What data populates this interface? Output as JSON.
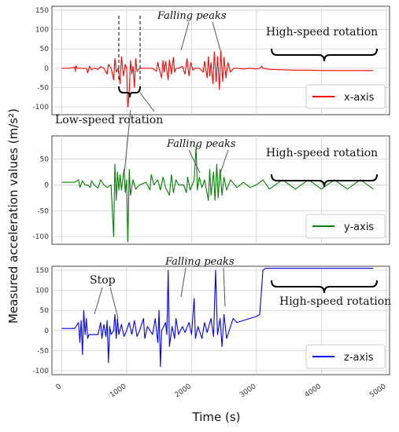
{
  "chart_data": [
    {
      "type": "line",
      "panel": "x-axis",
      "series": [
        {
          "name": "x-axis",
          "color": "#ff0000",
          "points": [
            [
              0,
              0
            ],
            [
              120,
              0
            ],
            [
              200,
              3
            ],
            [
              210,
              -8
            ],
            [
              220,
              6
            ],
            [
              240,
              0
            ],
            [
              380,
              0
            ],
            [
              400,
              -12
            ],
            [
              430,
              5
            ],
            [
              460,
              -4
            ],
            [
              500,
              0
            ],
            [
              560,
              -3
            ],
            [
              600,
              4
            ],
            [
              650,
              0
            ],
            [
              700,
              -15
            ],
            [
              720,
              10
            ],
            [
              760,
              0
            ],
            [
              800,
              -30
            ],
            [
              820,
              25
            ],
            [
              840,
              -10
            ],
            [
              870,
              0
            ],
            [
              900,
              -40
            ],
            [
              920,
              30
            ],
            [
              950,
              -20
            ],
            [
              980,
              10
            ],
            [
              1000,
              0
            ],
            [
              1020,
              -100
            ],
            [
              1040,
              -60
            ],
            [
              1060,
              20
            ],
            [
              1080,
              -15
            ],
            [
              1100,
              5
            ],
            [
              1120,
              -50
            ],
            [
              1140,
              25
            ],
            [
              1160,
              -8
            ],
            [
              1200,
              0
            ],
            [
              1300,
              0
            ],
            [
              1400,
              0
            ],
            [
              1460,
              -8
            ],
            [
              1480,
              15
            ],
            [
              1500,
              0
            ],
            [
              1540,
              -25
            ],
            [
              1560,
              20
            ],
            [
              1580,
              -10
            ],
            [
              1600,
              18
            ],
            [
              1640,
              -30
            ],
            [
              1660,
              22
            ],
            [
              1690,
              -15
            ],
            [
              1720,
              28
            ],
            [
              1740,
              -10
            ],
            [
              1760,
              0
            ],
            [
              1800,
              0
            ],
            [
              1860,
              5
            ],
            [
              1900,
              -15
            ],
            [
              1930,
              25
            ],
            [
              1960,
              -20
            ],
            [
              1990,
              15
            ],
            [
              2020,
              -5
            ],
            [
              2050,
              0
            ],
            [
              2120,
              0
            ],
            [
              2180,
              -10
            ],
            [
              2200,
              18
            ],
            [
              2240,
              -25
            ],
            [
              2260,
              30
            ],
            [
              2280,
              -20
            ],
            [
              2300,
              15
            ],
            [
              2330,
              -40
            ],
            [
              2350,
              42
            ],
            [
              2380,
              -35
            ],
            [
              2400,
              30
            ],
            [
              2430,
              -55
            ],
            [
              2450,
              45
            ],
            [
              2480,
              -35
            ],
            [
              2500,
              28
            ],
            [
              2530,
              -25
            ],
            [
              2560,
              15
            ],
            [
              2600,
              -10
            ],
            [
              2650,
              0
            ],
            [
              2700,
              0
            ],
            [
              2800,
              -2
            ],
            [
              2900,
              0
            ],
            [
              3000,
              -2
            ],
            [
              3050,
              0
            ],
            [
              3080,
              5
            ],
            [
              3100,
              0
            ],
            [
              3200,
              -3
            ],
            [
              3400,
              -4
            ],
            [
              3600,
              -5
            ],
            [
              3800,
              -5
            ],
            [
              4000,
              -6
            ],
            [
              4200,
              -6
            ],
            [
              4400,
              -6
            ],
            [
              4600,
              -6
            ],
            [
              4800,
              -6
            ]
          ]
        }
      ],
      "ylim": [
        -120,
        160
      ],
      "yticks": [
        -100,
        -50,
        0,
        50,
        100,
        150
      ],
      "xlim": [
        -150,
        5050
      ],
      "xticks": [
        0,
        1000,
        2000,
        3000,
        4000,
        5000
      ],
      "legend": "bottom-right",
      "grid": true,
      "annotations": {
        "falling_peaks": "Falling peaks",
        "high_speed": "High-speed rotation",
        "low_speed": "Low-speed rotation"
      }
    },
    {
      "type": "line",
      "panel": "y-axis",
      "series": [
        {
          "name": "y-axis",
          "color": "#008000",
          "points": [
            [
              0,
              5
            ],
            [
              200,
              5
            ],
            [
              260,
              10
            ],
            [
              280,
              -5
            ],
            [
              320,
              8
            ],
            [
              360,
              0
            ],
            [
              400,
              0
            ],
            [
              440,
              -5
            ],
            [
              460,
              8
            ],
            [
              500,
              0
            ],
            [
              560,
              -6
            ],
            [
              600,
              10
            ],
            [
              650,
              0
            ],
            [
              700,
              -5
            ],
            [
              760,
              0
            ],
            [
              800,
              -100
            ],
            [
              820,
              40
            ],
            [
              840,
              -30
            ],
            [
              860,
              25
            ],
            [
              880,
              -10
            ],
            [
              900,
              20
            ],
            [
              920,
              -10
            ],
            [
              960,
              30
            ],
            [
              980,
              -15
            ],
            [
              1000,
              10
            ],
            [
              1020,
              -110
            ],
            [
              1040,
              30
            ],
            [
              1060,
              -20
            ],
            [
              1100,
              10
            ],
            [
              1140,
              -8
            ],
            [
              1200,
              0
            ],
            [
              1300,
              5
            ],
            [
              1360,
              -10
            ],
            [
              1380,
              20
            ],
            [
              1420,
              0
            ],
            [
              1480,
              10
            ],
            [
              1520,
              -10
            ],
            [
              1560,
              15
            ],
            [
              1600,
              -5
            ],
            [
              1660,
              -20
            ],
            [
              1690,
              20
            ],
            [
              1720,
              -15
            ],
            [
              1760,
              10
            ],
            [
              1800,
              0
            ],
            [
              1880,
              0
            ],
            [
              1920,
              -15
            ],
            [
              1940,
              15
            ],
            [
              1980,
              -10
            ],
            [
              2040,
              10
            ],
            [
              2070,
              75
            ],
            [
              2090,
              -10
            ],
            [
              2120,
              15
            ],
            [
              2160,
              -5
            ],
            [
              2200,
              10
            ],
            [
              2260,
              -30
            ],
            [
              2280,
              30
            ],
            [
              2300,
              -20
            ],
            [
              2340,
              25
            ],
            [
              2360,
              -30
            ],
            [
              2390,
              40
            ],
            [
              2410,
              -25
            ],
            [
              2440,
              30
            ],
            [
              2470,
              -20
            ],
            [
              2500,
              15
            ],
            [
              2540,
              -10
            ],
            [
              2600,
              10
            ],
            [
              2700,
              -5
            ],
            [
              2800,
              5
            ],
            [
              2900,
              -5
            ],
            [
              3000,
              0
            ],
            [
              3100,
              10
            ],
            [
              3200,
              -8
            ],
            [
              3400,
              10
            ],
            [
              3600,
              -8
            ],
            [
              3800,
              10
            ],
            [
              4000,
              -8
            ],
            [
              4200,
              10
            ],
            [
              4400,
              -8
            ],
            [
              4600,
              10
            ],
            [
              4800,
              -8
            ]
          ]
        }
      ],
      "ylim": [
        -115,
        95
      ],
      "yticks": [
        -100,
        -50,
        0,
        50
      ],
      "xlim": [
        -150,
        5050
      ],
      "xticks": [
        0,
        1000,
        2000,
        3000,
        4000,
        5000
      ],
      "legend": "bottom-right",
      "grid": true,
      "annotations": {
        "falling_peaks": "Falling peaks",
        "high_speed": "High-speed rotation"
      }
    },
    {
      "type": "line",
      "panel": "z-axis",
      "series": [
        {
          "name": "z-axis",
          "color": "#0000ff",
          "points": [
            [
              0,
              5
            ],
            [
              200,
              5
            ],
            [
              260,
              20
            ],
            [
              280,
              -30
            ],
            [
              300,
              25
            ],
            [
              320,
              -60
            ],
            [
              340,
              50
            ],
            [
              360,
              -10
            ],
            [
              380,
              30
            ],
            [
              400,
              -20
            ],
            [
              420,
              -10
            ],
            [
              500,
              -10
            ],
            [
              560,
              -10
            ],
            [
              600,
              20
            ],
            [
              620,
              -20
            ],
            [
              650,
              15
            ],
            [
              680,
              -15
            ],
            [
              700,
              25
            ],
            [
              720,
              -80
            ],
            [
              740,
              10
            ],
            [
              760,
              -10
            ],
            [
              800,
              0
            ],
            [
              820,
              40
            ],
            [
              840,
              -20
            ],
            [
              860,
              30
            ],
            [
              880,
              -10
            ],
            [
              920,
              15
            ],
            [
              960,
              -15
            ],
            [
              1000,
              0
            ],
            [
              1040,
              20
            ],
            [
              1080,
              -10
            ],
            [
              1120,
              25
            ],
            [
              1160,
              -15
            ],
            [
              1200,
              0
            ],
            [
              1260,
              30
            ],
            [
              1280,
              -20
            ],
            [
              1320,
              10
            ],
            [
              1400,
              -10
            ],
            [
              1440,
              30
            ],
            [
              1480,
              -30
            ],
            [
              1500,
              50
            ],
            [
              1520,
              -90
            ],
            [
              1540,
              0
            ],
            [
              1600,
              20
            ],
            [
              1620,
              -10
            ],
            [
              1640,
              150
            ],
            [
              1660,
              -40
            ],
            [
              1700,
              10
            ],
            [
              1740,
              -20
            ],
            [
              1760,
              30
            ],
            [
              1800,
              -10
            ],
            [
              1860,
              10
            ],
            [
              1900,
              -5
            ],
            [
              1960,
              20
            ],
            [
              2000,
              -10
            ],
            [
              2040,
              80
            ],
            [
              2060,
              -20
            ],
            [
              2100,
              10
            ],
            [
              2160,
              -20
            ],
            [
              2200,
              20
            ],
            [
              2240,
              -5
            ],
            [
              2300,
              30
            ],
            [
              2340,
              -15
            ],
            [
              2370,
              150
            ],
            [
              2400,
              -10
            ],
            [
              2440,
              30
            ],
            [
              2470,
              -40
            ],
            [
              2500,
              40
            ],
            [
              2540,
              -20
            ],
            [
              2600,
              10
            ],
            [
              2640,
              30
            ],
            [
              2700,
              20
            ],
            [
              2800,
              25
            ],
            [
              2900,
              30
            ],
            [
              3000,
              35
            ],
            [
              3050,
              40
            ],
            [
              3100,
              150
            ],
            [
              3140,
              155
            ],
            [
              3300,
              155
            ],
            [
              3600,
              155
            ],
            [
              4000,
              155
            ],
            [
              4400,
              155
            ],
            [
              4800,
              155
            ]
          ]
        }
      ],
      "ylim": [
        -110,
        160
      ],
      "yticks": [
        -100,
        -50,
        0,
        50,
        100,
        150
      ],
      "xlim": [
        -150,
        5050
      ],
      "xticks": [
        0,
        1000,
        2000,
        3000,
        4000,
        5000
      ],
      "legend": "bottom-right",
      "grid": true,
      "annotations": {
        "falling_peaks": "Falling peaks",
        "high_speed": "High-speed rotation",
        "stop": "Stop"
      }
    }
  ],
  "ylabel": "Measured acceleration values (m/s²)",
  "xlabel": "Time (s)",
  "xtick_labels": [
    "0",
    "1000",
    "2000",
    "3000",
    "4000",
    "5000"
  ]
}
